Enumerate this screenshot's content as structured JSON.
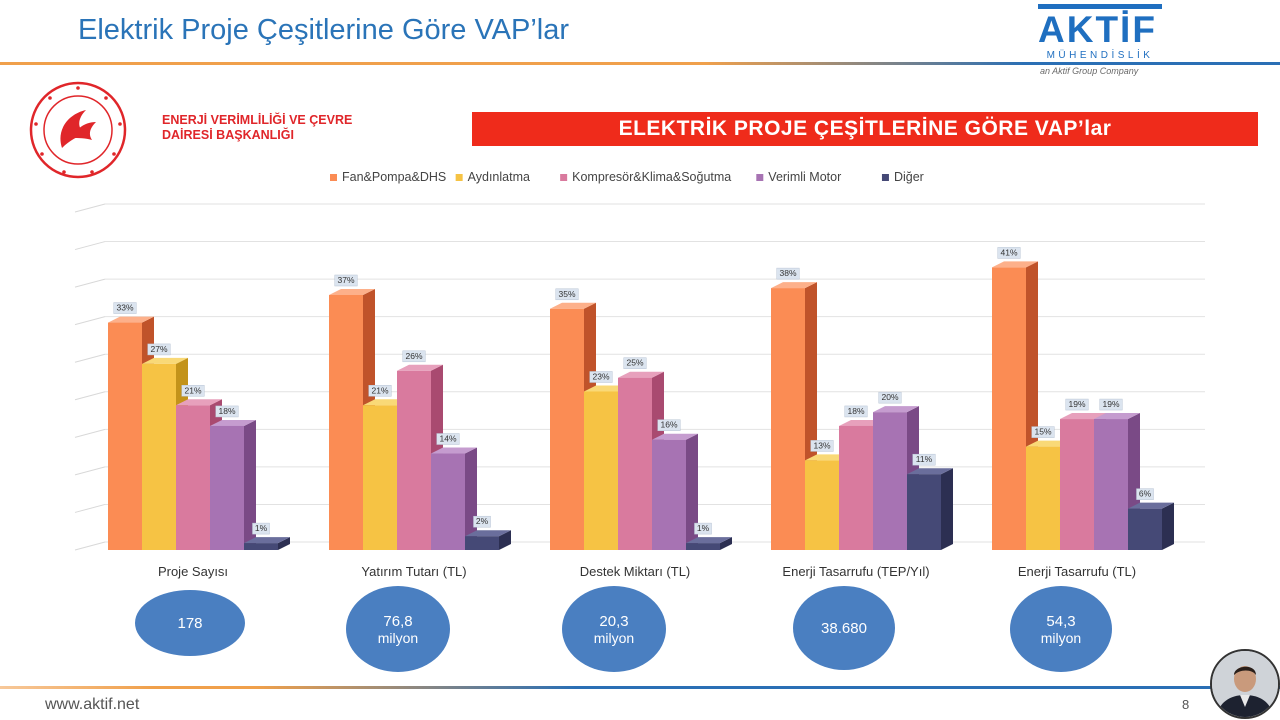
{
  "slide": {
    "title": "Elektrik Proje Çeşitlerine Göre VAP’lar",
    "page_number": "8",
    "footer_url": "www.aktif.net"
  },
  "brand": {
    "name": "AKTİF",
    "subtitle": "MÜHENDİSLİK",
    "group": "an Aktif Group Company"
  },
  "department": {
    "line1": "ENERJİ VERİMLİLİĞİ VE ÇEVRE",
    "line2": "DAİRESİ BAŞKANLIĞI"
  },
  "banner": {
    "text": "ELEKTRİK PROJE ÇEŞİTLERİNE GÖRE VAP’lar"
  },
  "colors": {
    "fan": "#fb8c54",
    "aydinlatma": "#f6c344",
    "kompresor": "#d97a9e",
    "motor": "#a773b3",
    "diger": "#454976",
    "banner": "#ef2b1b",
    "circle": "#4a7fc1",
    "title": "#2a74b8"
  },
  "chart_data": {
    "type": "bar",
    "categories": [
      "Proje Sayısı",
      "Yatırım Tutarı (TL)",
      "Destek Miktarı (TL)",
      "Enerji Tasarrufu (TEP/Yıl)",
      "Enerji Tasarrufu (TL)"
    ],
    "series": [
      {
        "name": "Fan&Pompa&DHS",
        "values": [
          33,
          37,
          35,
          38,
          41
        ],
        "labels": [
          "33%",
          "37%",
          "35%",
          "38%",
          "41%"
        ]
      },
      {
        "name": "Aydınlatma",
        "values": [
          27,
          21,
          23,
          13,
          15
        ],
        "labels": [
          "27%",
          "21%",
          "23%",
          "13%",
          "15%"
        ]
      },
      {
        "name": "Kompresör&Klima&Soğutma",
        "values": [
          21,
          26,
          25,
          18,
          19
        ],
        "labels": [
          "21%",
          "26%",
          "25%",
          "18%",
          "19%"
        ]
      },
      {
        "name": "Verimli Motor",
        "values": [
          18,
          14,
          16,
          20,
          19
        ],
        "labels": [
          "18%",
          "14%",
          "16%",
          "20%",
          "19%"
        ]
      },
      {
        "name": "Diğer",
        "values": [
          1,
          2,
          1,
          11,
          6
        ],
        "labels": [
          "1%",
          "2%",
          "1%",
          "11%",
          "6%"
        ]
      }
    ],
    "ylim": [
      0,
      45
    ],
    "grid": true,
    "legend": "top",
    "three_d": true
  },
  "totals": [
    {
      "value": "178",
      "unit": ""
    },
    {
      "value": "76,8",
      "unit": "milyon"
    },
    {
      "value": "20,3",
      "unit": "milyon"
    },
    {
      "value": "38.680",
      "unit": ""
    },
    {
      "value": "54,3",
      "unit": "milyon"
    }
  ]
}
